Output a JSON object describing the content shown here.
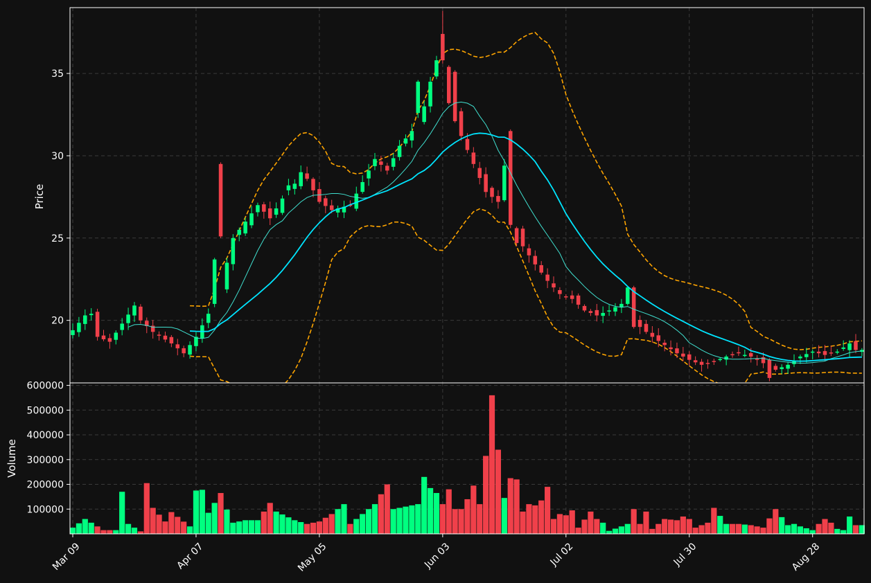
{
  "chart_data": {
    "type": "candlestick",
    "background_color": "#111111",
    "up_color": "#00ff80",
    "down_color": "#f0404a",
    "ma_fast_color": "#40e0d0",
    "ma_slow_color": "#00e5ff",
    "band_color": "#ffa500",
    "grid": true,
    "price_panel": {
      "ylabel": "Price",
      "ylim": [
        16.2,
        39.0
      ],
      "yticks": [
        20,
        25,
        30,
        35
      ]
    },
    "volume_panel": {
      "ylabel": "Volume",
      "ylim": [
        0,
        610000
      ],
      "yticks": [
        100000,
        200000,
        300000,
        400000,
        500000,
        600000
      ]
    },
    "x_tick_labels": [
      {
        "index": 0,
        "label": "Mar 09"
      },
      {
        "index": 20,
        "label": "Apr 07"
      },
      {
        "index": 40,
        "label": "May 05"
      },
      {
        "index": 60,
        "label": "Jun 03"
      },
      {
        "index": 80,
        "label": "Jul 02"
      },
      {
        "index": 100,
        "label": "Jul 30"
      },
      {
        "index": 120,
        "label": "Aug 28"
      }
    ],
    "price_anchors": [
      [
        0,
        19.4
      ],
      [
        2,
        20.3
      ],
      [
        3,
        20.4
      ],
      [
        4,
        19.0
      ],
      [
        6,
        18.7
      ],
      [
        8,
        19.8
      ],
      [
        10,
        20.9
      ],
      [
        11,
        20.0
      ],
      [
        13,
        19.3
      ],
      [
        16,
        18.6
      ],
      [
        18,
        18.0
      ],
      [
        20,
        19.0
      ],
      [
        22,
        20.4
      ],
      [
        24,
        22.0
      ],
      [
        26,
        25.0
      ],
      [
        28,
        26.0
      ],
      [
        30,
        27.0
      ],
      [
        32,
        26.2
      ],
      [
        34,
        27.4
      ],
      [
        36,
        28.3
      ],
      [
        37,
        29.0
      ],
      [
        38,
        28.6
      ],
      [
        40,
        27.2
      ],
      [
        42,
        26.7
      ],
      [
        45,
        27.0
      ],
      [
        47,
        28.4
      ],
      [
        49,
        29.8
      ],
      [
        51,
        29.1
      ],
      [
        53,
        30.6
      ],
      [
        55,
        31.5
      ],
      [
        57,
        33.0
      ],
      [
        58,
        34.5
      ],
      [
        59,
        35.8
      ],
      [
        60,
        36.6
      ],
      [
        61,
        35.2
      ],
      [
        62,
        33.0
      ],
      [
        63,
        31.2
      ],
      [
        65,
        29.5
      ],
      [
        67,
        27.8
      ],
      [
        69,
        27.2
      ],
      [
        70,
        28.4
      ],
      [
        71,
        27.0
      ],
      [
        73,
        24.5
      ],
      [
        75,
        23.4
      ],
      [
        77,
        22.4
      ],
      [
        79,
        21.6
      ],
      [
        81,
        21.3
      ],
      [
        83,
        20.6
      ],
      [
        85,
        20.3
      ],
      [
        87,
        20.6
      ],
      [
        89,
        21.0
      ],
      [
        90,
        20.5
      ],
      [
        92,
        19.6
      ],
      [
        94,
        19.0
      ],
      [
        96,
        18.5
      ],
      [
        98,
        18.0
      ],
      [
        100,
        17.6
      ],
      [
        102,
        17.3
      ],
      [
        104,
        17.5
      ],
      [
        106,
        17.8
      ],
      [
        108,
        18.0
      ],
      [
        110,
        17.8
      ],
      [
        112,
        17.4
      ],
      [
        114,
        17.0
      ],
      [
        116,
        17.3
      ],
      [
        118,
        17.8
      ],
      [
        120,
        18.1
      ],
      [
        122,
        17.9
      ],
      [
        124,
        18.1
      ],
      [
        126,
        18.6
      ],
      [
        127,
        18.2
      ]
    ],
    "candles": [
      {
        "i": 23,
        "o": 21.0,
        "h": 23.8,
        "l": 20.8,
        "c": 23.7
      },
      {
        "i": 24,
        "o": 29.5,
        "h": 29.6,
        "l": 25.0,
        "c": 25.1
      },
      {
        "i": 35,
        "o": 27.9,
        "h": 28.6,
        "l": 27.6,
        "c": 28.2
      },
      {
        "i": 56,
        "o": 32.6,
        "h": 34.6,
        "l": 32.3,
        "c": 34.5
      },
      {
        "i": 60,
        "o": 37.4,
        "h": 38.8,
        "l": 35.6,
        "c": 35.8
      },
      {
        "i": 61,
        "o": 35.4,
        "h": 35.5,
        "l": 33.1,
        "c": 33.2
      },
      {
        "i": 62,
        "o": 35.1,
        "h": 35.2,
        "l": 32.0,
        "c": 32.1
      },
      {
        "i": 70,
        "o": 27.3,
        "h": 29.8,
        "l": 27.2,
        "c": 29.4
      },
      {
        "i": 71,
        "o": 31.5,
        "h": 31.6,
        "l": 25.6,
        "c": 25.8
      },
      {
        "i": 72,
        "o": 25.6,
        "h": 25.7,
        "l": 24.5,
        "c": 24.7
      },
      {
        "i": 90,
        "o": 21.0,
        "h": 22.1,
        "l": 20.9,
        "c": 22.0
      },
      {
        "i": 91,
        "o": 22.0,
        "h": 22.1,
        "l": 19.5,
        "c": 19.6
      },
      {
        "i": 113,
        "o": 17.6,
        "h": 17.7,
        "l": 16.3,
        "c": 16.5
      }
    ],
    "volume_anchors": [
      [
        0,
        25000
      ],
      [
        2,
        60000
      ],
      [
        5,
        15000
      ],
      [
        7,
        15000
      ],
      [
        8,
        170000
      ],
      [
        9,
        40000
      ],
      [
        11,
        10000
      ],
      [
        12,
        205000
      ],
      [
        13,
        105000
      ],
      [
        15,
        50000
      ],
      [
        16,
        88000
      ],
      [
        19,
        30000
      ],
      [
        20,
        175000
      ],
      [
        21,
        178000
      ],
      [
        22,
        85000
      ],
      [
        24,
        165000
      ],
      [
        25,
        98000
      ],
      [
        26,
        45000
      ],
      [
        28,
        55000
      ],
      [
        30,
        55000
      ],
      [
        32,
        125000
      ],
      [
        33,
        90000
      ],
      [
        36,
        55000
      ],
      [
        38,
        40000
      ],
      [
        40,
        50000
      ],
      [
        42,
        80000
      ],
      [
        44,
        120000
      ],
      [
        45,
        40000
      ],
      [
        47,
        80000
      ],
      [
        49,
        120000
      ],
      [
        51,
        200000
      ],
      [
        52,
        100000
      ],
      [
        54,
        110000
      ],
      [
        56,
        120000
      ],
      [
        57,
        230000
      ],
      [
        58,
        185000
      ],
      [
        59,
        165000
      ],
      [
        60,
        120000
      ],
      [
        61,
        180000
      ],
      [
        62,
        100000
      ],
      [
        63,
        100000
      ],
      [
        64,
        140000
      ],
      [
        65,
        195000
      ],
      [
        66,
        120000
      ],
      [
        67,
        315000
      ],
      [
        68,
        560000
      ],
      [
        69,
        340000
      ],
      [
        70,
        145000
      ],
      [
        71,
        225000
      ],
      [
        72,
        220000
      ],
      [
        73,
        90000
      ],
      [
        74,
        120000
      ],
      [
        75,
        115000
      ],
      [
        76,
        135000
      ],
      [
        77,
        190000
      ],
      [
        78,
        60000
      ],
      [
        79,
        80000
      ],
      [
        80,
        75000
      ],
      [
        81,
        95000
      ],
      [
        82,
        25000
      ],
      [
        84,
        90000
      ],
      [
        85,
        60000
      ],
      [
        86,
        45000
      ],
      [
        87,
        12000
      ],
      [
        89,
        30000
      ],
      [
        90,
        40000
      ],
      [
        91,
        100000
      ],
      [
        92,
        40000
      ],
      [
        93,
        90000
      ],
      [
        94,
        20000
      ],
      [
        96,
        60000
      ],
      [
        98,
        55000
      ],
      [
        99,
        70000
      ],
      [
        100,
        60000
      ],
      [
        101,
        25000
      ],
      [
        103,
        45000
      ],
      [
        104,
        105000
      ],
      [
        106,
        40000
      ],
      [
        108,
        40000
      ],
      [
        110,
        35000
      ],
      [
        112,
        25000
      ],
      [
        114,
        100000
      ],
      [
        116,
        35000
      ],
      [
        117,
        40000
      ],
      [
        118,
        30000
      ],
      [
        120,
        15000
      ],
      [
        121,
        40000
      ],
      [
        122,
        60000
      ],
      [
        123,
        45000
      ],
      [
        124,
        20000
      ],
      [
        125,
        15000
      ],
      [
        126,
        70000
      ],
      [
        127,
        35000
      ],
      [
        128,
        35000
      ]
    ]
  }
}
